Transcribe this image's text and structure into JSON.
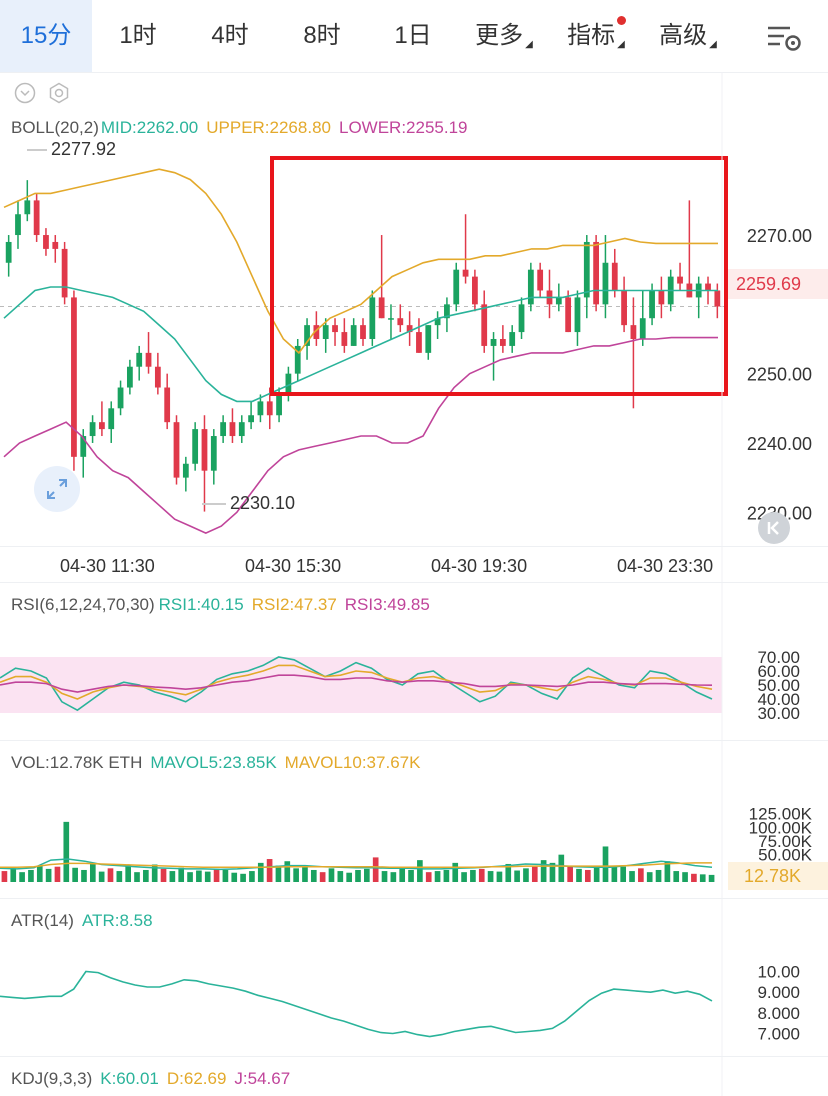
{
  "tabs": [
    {
      "label": "15分",
      "active": true
    },
    {
      "label": "1时"
    },
    {
      "label": "4时"
    },
    {
      "label": "8时"
    },
    {
      "label": "1日"
    },
    {
      "label": "更多",
      "dropdown": true
    },
    {
      "label": "指标",
      "dropdown": true,
      "dot": true
    },
    {
      "label": "高级",
      "dropdown": true
    }
  ],
  "icons": [
    "chevron-down-icon",
    "gear-icon",
    "expand-icon",
    "scroll-back-icon",
    "chart-settings-icon"
  ],
  "colors": {
    "up": "#1aa260",
    "down": "#e0394a",
    "mid": "#2ab39a",
    "upper": "#e3a92b",
    "lower": "#c0449a",
    "accent": "#1e6fd9",
    "rsi_band": "#fbe3f2",
    "highlight_box": "#e8151b"
  },
  "boll": {
    "legend": {
      "name": "BOLL(20,2)",
      "mid": "MID:2262.00",
      "upper": "UPPER:2268.80",
      "lower": "LOWER:2255.19"
    },
    "high_label": "2277.92",
    "low_label": "2230.10",
    "last_price": "2259.69"
  },
  "time_labels": [
    "04-30 11:30",
    "04-30 15:30",
    "04-30 19:30",
    "04-30 23:30"
  ],
  "rsi": {
    "legend": {
      "name": "RSI(6,12,24,70,30)",
      "r1": "RSI1:40.15",
      "r2": "RSI2:47.37",
      "r3": "RSI3:49.85"
    }
  },
  "vol": {
    "legend": {
      "name": "VOL:12.78K ETH",
      "m5": "MAVOL5:23.85K",
      "m10": "MAVOL10:37.67K"
    },
    "last": "12.78K"
  },
  "atr": {
    "legend": {
      "name": "ATR(14)",
      "val": "ATR:8.58"
    }
  },
  "kdj": {
    "legend": {
      "name": "KDJ(9,3,3)",
      "k": "K:60.01",
      "d": "D:62.69",
      "j": "J:54.67"
    }
  },
  "chart_data": [
    {
      "type": "candlestick",
      "title": "BOLL(20,2)",
      "x_ticks": [
        "04-30 11:30",
        "04-30 15:30",
        "04-30 19:30",
        "04-30 23:30"
      ],
      "y_ticks": [
        "2270.00",
        "2250.00",
        "2240.00",
        "2230.00"
      ],
      "ylim": [
        2226,
        2284
      ],
      "candles": [
        [
          2266,
          2270,
          2264,
          2269
        ],
        [
          2270,
          2275,
          2268,
          2273
        ],
        [
          2273,
          2277.92,
          2272,
          2275
        ],
        [
          2275,
          2276,
          2269,
          2270
        ],
        [
          2270,
          2271,
          2267,
          2268
        ],
        [
          2269,
          2270,
          2266,
          2268
        ],
        [
          2268,
          2269,
          2260,
          2261
        ],
        [
          2261,
          2262,
          2236,
          2238
        ],
        [
          2238,
          2242,
          2235,
          2241
        ],
        [
          2241,
          2244,
          2240,
          2243
        ],
        [
          2243,
          2246,
          2241,
          2242
        ],
        [
          2242,
          2246,
          2240,
          2245
        ],
        [
          2245,
          2249,
          2244,
          2248
        ],
        [
          2248,
          2252,
          2247,
          2251
        ],
        [
          2251,
          2254,
          2249,
          2253
        ],
        [
          2253,
          2256,
          2250,
          2251
        ],
        [
          2251,
          2253,
          2247,
          2248
        ],
        [
          2248,
          2250,
          2242,
          2243
        ],
        [
          2243,
          2244,
          2234,
          2235
        ],
        [
          2235,
          2238,
          2233,
          2237
        ],
        [
          2237,
          2243,
          2236,
          2242
        ],
        [
          2242,
          2244,
          2230.1,
          2236
        ],
        [
          2236,
          2242,
          2234,
          2241
        ],
        [
          2241,
          2244,
          2240,
          2243
        ],
        [
          2243,
          2245,
          2240,
          2241
        ],
        [
          2241,
          2244,
          2240,
          2243
        ],
        [
          2243,
          2246,
          2242,
          2244
        ],
        [
          2244,
          2247,
          2243,
          2246
        ],
        [
          2246,
          2248,
          2242,
          2244
        ],
        [
          2244,
          2248,
          2243,
          2247
        ],
        [
          2247,
          2251,
          2246,
          2250
        ],
        [
          2250,
          2255,
          2249,
          2254
        ],
        [
          2254,
          2258,
          2252,
          2257
        ],
        [
          2257,
          2259,
          2254,
          2255
        ],
        [
          2255,
          2258,
          2253,
          2257
        ],
        [
          2257,
          2258,
          2254,
          2256
        ],
        [
          2256,
          2258,
          2253,
          2254
        ],
        [
          2254,
          2258,
          2254,
          2257
        ],
        [
          2257,
          2258,
          2254,
          2255
        ],
        [
          2255,
          2262,
          2254,
          2261
        ],
        [
          2261,
          2270,
          2258,
          2258
        ],
        [
          2258,
          2260,
          2255,
          2258
        ],
        [
          2258,
          2260,
          2256,
          2257
        ],
        [
          2257,
          2259,
          2254,
          2256
        ],
        [
          2256,
          2258,
          2253,
          2253
        ],
        [
          2253,
          2257,
          2252,
          2257
        ],
        [
          2257,
          2259,
          2255,
          2258
        ],
        [
          2258,
          2261,
          2256,
          2260
        ],
        [
          2260,
          2266,
          2259,
          2265
        ],
        [
          2265,
          2273,
          2263,
          2264
        ],
        [
          2264,
          2265,
          2259,
          2260
        ],
        [
          2260,
          2262,
          2253,
          2254
        ],
        [
          2254,
          2256,
          2249,
          2255
        ],
        [
          2255,
          2257,
          2253,
          2254
        ],
        [
          2254,
          2257,
          2253,
          2256
        ],
        [
          2256,
          2261,
          2255,
          2260
        ],
        [
          2260,
          2266,
          2259,
          2265
        ],
        [
          2265,
          2266,
          2261,
          2262
        ],
        [
          2262,
          2265,
          2258,
          2260
        ],
        [
          2260,
          2263,
          2259,
          2261
        ],
        [
          2261,
          2262,
          2256,
          2256
        ],
        [
          2256,
          2262,
          2254,
          2261
        ],
        [
          2261,
          2270,
          2258,
          2269
        ],
        [
          2269,
          2270,
          2259,
          2260
        ],
        [
          2260,
          2270,
          2258,
          2266
        ],
        [
          2266,
          2268,
          2261,
          2262
        ],
        [
          2262,
          2264,
          2256,
          2257
        ],
        [
          2257,
          2261,
          2245,
          2255
        ],
        [
          2255,
          2262,
          2254,
          2258
        ],
        [
          2258,
          2263,
          2257,
          2262
        ],
        [
          2262,
          2264,
          2258,
          2260
        ],
        [
          2260,
          2265,
          2259,
          2264
        ],
        [
          2264,
          2266,
          2262,
          2263
        ],
        [
          2263,
          2275,
          2261,
          2261
        ],
        [
          2261,
          2264,
          2258,
          2263
        ],
        [
          2263,
          2264,
          2260,
          2262
        ],
        [
          2262,
          2263,
          2258,
          2259.69
        ]
      ],
      "series": [
        {
          "name": "UPPER",
          "values": [
            2274,
            2275,
            2276,
            2276,
            2276.5,
            2277,
            2277.5,
            2278,
            2278.5,
            2279,
            2279.5,
            2279,
            2278,
            2276,
            2273,
            2269,
            2264,
            2259,
            2255,
            2253,
            2256,
            2258,
            2259,
            2260,
            2262,
            2264,
            2265,
            2266,
            2266.5,
            2266.5,
            2266.5,
            2267,
            2267,
            2267.5,
            2268,
            2268,
            2268.5,
            2268.5,
            2268.5,
            2269,
            2269.5,
            2269,
            2268.8,
            2268.8,
            2268.8,
            2268.8,
            2268.8
          ]
        },
        {
          "name": "MID",
          "values": [
            2258,
            2260,
            2262,
            2262.5,
            2262.5,
            2262,
            2261.5,
            2261,
            2260,
            2259,
            2257,
            2255,
            2252,
            2249,
            2247,
            2246,
            2246,
            2247,
            2248,
            2249,
            2250,
            2251,
            2252,
            2253,
            2254,
            2255,
            2256,
            2257,
            2258,
            2258.5,
            2259,
            2259.5,
            2260,
            2260.5,
            2261,
            2261,
            2261,
            2261.5,
            2262,
            2262,
            2262,
            2262,
            2262,
            2262,
            2262,
            2262,
            2262
          ]
        },
        {
          "name": "LOWER",
          "values": [
            2238,
            2240,
            2241,
            2242,
            2243,
            2241,
            2238,
            2236,
            2235,
            2233,
            2231,
            2229,
            2228,
            2227,
            2228,
            2230,
            2233,
            2236,
            2238,
            2239,
            2239.5,
            2240,
            2240.5,
            2241,
            2241,
            2240,
            2240,
            2241,
            2245,
            2248,
            2250,
            2251,
            2252,
            2252.5,
            2253,
            2253,
            2253,
            2253.5,
            2254,
            2254,
            2254.5,
            2255,
            2255,
            2255.2,
            2255.2,
            2255.2,
            2255.2
          ]
        }
      ]
    },
    {
      "type": "line",
      "title": "RSI(6,12,24,70,30)",
      "y_ticks": [
        "70.00",
        "60.00",
        "50.00",
        "40.00",
        "30.00"
      ],
      "ylim": [
        25,
        75
      ],
      "series": [
        {
          "name": "RSI1",
          "values": [
            55,
            62,
            60,
            55,
            38,
            32,
            40,
            48,
            52,
            50,
            45,
            42,
            38,
            45,
            54,
            58,
            60,
            64,
            70,
            68,
            62,
            56,
            60,
            66,
            62,
            54,
            50,
            58,
            60,
            52,
            45,
            38,
            42,
            52,
            50,
            44,
            40,
            55,
            62,
            56,
            50,
            48,
            60,
            58,
            52,
            45,
            40
          ]
        },
        {
          "name": "RSI2",
          "values": [
            52,
            56,
            56,
            52,
            44,
            40,
            45,
            48,
            50,
            49,
            47,
            45,
            43,
            47,
            52,
            55,
            57,
            60,
            64,
            64,
            60,
            56,
            57,
            60,
            59,
            55,
            52,
            55,
            56,
            53,
            49,
            45,
            46,
            51,
            50,
            48,
            46,
            52,
            56,
            54,
            51,
            50,
            55,
            55,
            52,
            49,
            47
          ]
        },
        {
          "name": "RSI3",
          "values": [
            50,
            52,
            52,
            51,
            47,
            45,
            47,
            49,
            50,
            49.5,
            48.5,
            48,
            47,
            48,
            50,
            52,
            53,
            55,
            57,
            57,
            56,
            54,
            54,
            55,
            55,
            53,
            52,
            53,
            53,
            52,
            51,
            49,
            49,
            50,
            50,
            49.5,
            49,
            50,
            52,
            52,
            51,
            50.5,
            51,
            51,
            50.5,
            50,
            49.85
          ]
        }
      ]
    },
    {
      "type": "bar",
      "title": "VOL",
      "y_ticks": [
        "125.00K",
        "100.00K",
        "75.00K",
        "50.00K"
      ],
      "ylim": [
        0,
        150
      ],
      "values": [
        20,
        25,
        18,
        22,
        30,
        24,
        28,
        110,
        26,
        22,
        34,
        19,
        25,
        20,
        30,
        18,
        22,
        32,
        24,
        20,
        26,
        18,
        21,
        19,
        24,
        22,
        17,
        15,
        20,
        35,
        42,
        30,
        38,
        25,
        28,
        22,
        18,
        25,
        20,
        17,
        22,
        24,
        45,
        20,
        18,
        25,
        22,
        40,
        18,
        20,
        22,
        35,
        18,
        22,
        24,
        20,
        19,
        33,
        21,
        25,
        28,
        40,
        35,
        50,
        28,
        24,
        22,
        30,
        65,
        30,
        28,
        20,
        25,
        18,
        22,
        38,
        20,
        18,
        15,
        14,
        13
      ],
      "series": [
        {
          "name": "MAVOL5",
          "values": [
            25,
            24,
            26,
            40,
            42,
            38,
            32,
            30,
            28,
            26,
            25,
            24,
            24,
            23,
            24,
            26,
            28,
            30,
            30,
            28,
            27,
            26,
            26,
            25,
            25,
            24,
            24,
            25,
            26,
            28,
            30,
            33,
            32,
            30,
            28,
            27,
            27,
            30,
            34,
            38,
            35,
            30,
            27
          ]
        },
        {
          "name": "MAVOL10",
          "values": [
            27,
            27,
            28,
            32,
            34,
            34,
            33,
            32,
            31,
            30,
            29,
            28,
            27,
            27,
            27,
            27,
            27,
            28,
            28,
            28,
            28,
            28,
            28,
            27,
            27,
            27,
            27,
            27,
            27,
            28,
            28,
            29,
            29,
            29,
            29,
            29,
            29,
            30,
            31,
            33,
            34,
            35,
            35
          ]
        }
      ]
    },
    {
      "type": "line",
      "title": "ATR(14)",
      "y_ticks": [
        "10.00",
        "9.000",
        "8.000",
        "7.000"
      ],
      "ylim": [
        6.3,
        10.8
      ],
      "series": [
        {
          "name": "ATR",
          "values": [
            8.8,
            8.75,
            8.7,
            8.75,
            8.8,
            8.8,
            9.15,
            10.0,
            9.95,
            9.7,
            9.5,
            9.35,
            9.25,
            9.25,
            9.4,
            9.6,
            9.55,
            9.4,
            9.3,
            9.2,
            9.05,
            8.85,
            8.7,
            8.55,
            8.35,
            8.15,
            7.95,
            7.75,
            7.6,
            7.4,
            7.2,
            7.05,
            7.0,
            7.1,
            6.95,
            6.85,
            6.95,
            7.1,
            7.2,
            7.3,
            7.35,
            7.2,
            7.05,
            7.1,
            7.15,
            7.25,
            7.6,
            8.1,
            8.6,
            8.95,
            9.15,
            9.1,
            9.05,
            9.0,
            9.1,
            8.95,
            9.05,
            8.9,
            8.58
          ]
        }
      ]
    }
  ]
}
